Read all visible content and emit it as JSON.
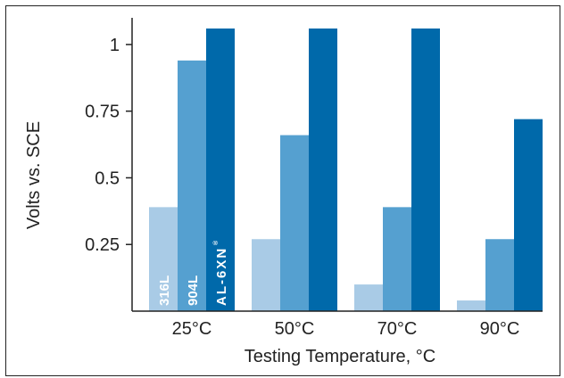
{
  "chart_data": {
    "type": "bar",
    "categories": [
      "25°C",
      "50°C",
      "70°C",
      "90°C"
    ],
    "series": [
      {
        "name": "316L",
        "values": [
          0.39,
          0.27,
          0.1,
          0.04
        ],
        "color": "#a9cbe6"
      },
      {
        "name": "904L",
        "values": [
          0.94,
          0.66,
          0.39,
          0.27
        ],
        "color": "#55a0d0"
      },
      {
        "name": "AL-6XN",
        "values": [
          1.06,
          1.06,
          1.06,
          0.72
        ],
        "color": "#0069aa"
      }
    ],
    "series_mark": "®",
    "xlabel": "Testing Temperature, °C",
    "ylabel": "Volts vs. SCE",
    "ylim": [
      0,
      1.1
    ],
    "yticks": [
      0.25,
      0.5,
      0.75,
      1
    ],
    "ytick_labels": [
      "0.25",
      "0.5",
      "0.75",
      "1"
    ],
    "grid": false,
    "legend": "labels inside first group of bars"
  }
}
